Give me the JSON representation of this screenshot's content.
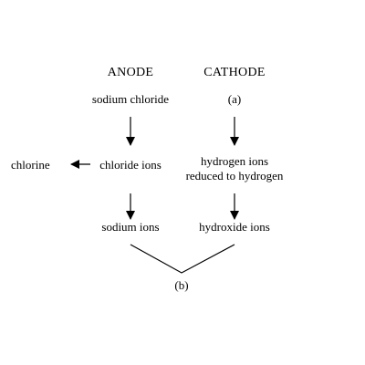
{
  "headers": {
    "anode": "ANODE",
    "cathode": "CATHODE"
  },
  "anode": {
    "top": "sodium chloride",
    "middle": "chloride ions",
    "bottom": "sodium ions",
    "side_product": "chlorine"
  },
  "cathode": {
    "top": "(a)",
    "middle_line1": "hydrogen ions",
    "middle_line2": "reduced to hydrogen",
    "bottom": "hydroxide ions"
  },
  "join_label": "(b)"
}
